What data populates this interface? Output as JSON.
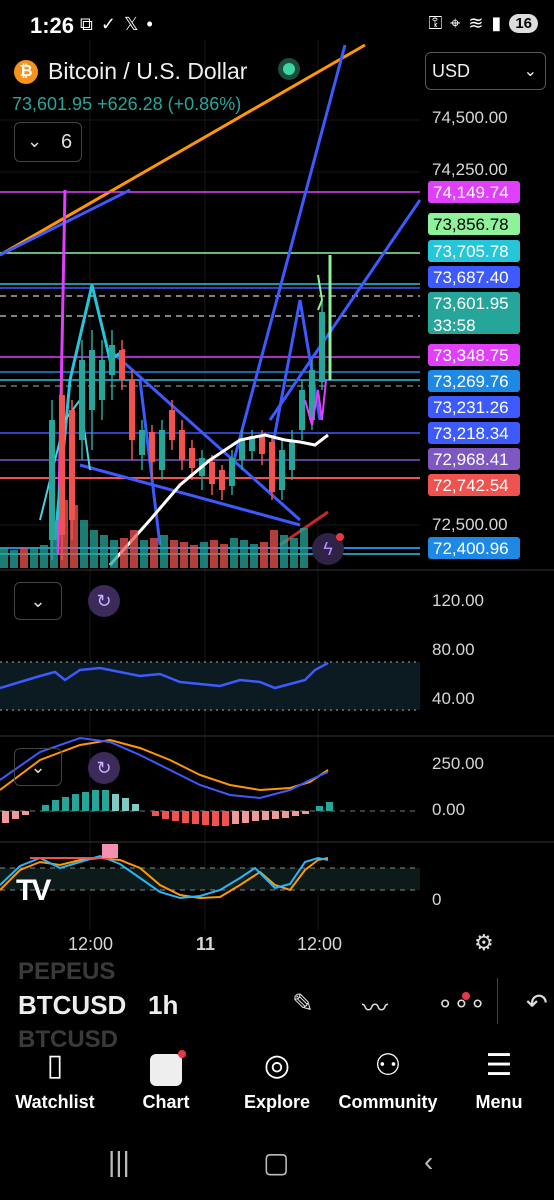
{
  "status_bar": {
    "time": "1:26",
    "left_icons": [
      "screen-record-icon",
      "check-badge-icon",
      "x-logo-icon",
      "dot-icon"
    ],
    "right_icons": [
      "key-icon",
      "location-icon",
      "wifi-icon",
      "signal-icon"
    ],
    "battery": "16"
  },
  "header": {
    "title": "Bitcoin / U.S. Dollar",
    "price": "73,601.95",
    "change": "+626.28 (+0.86%)",
    "currency": "USD",
    "indicator_count": "6"
  },
  "price_axis": {
    "labels": [
      "74,500.00",
      "74,250.00",
      "72,500.00"
    ]
  },
  "price_tags": [
    {
      "value": "74,149.74",
      "color": "#e040fb"
    },
    {
      "value": "73,856.78",
      "color": "#8ef29a"
    },
    {
      "value": "73,705.78",
      "color": "#26c6da"
    },
    {
      "value": "73,687.40",
      "color": "#3d5afe"
    },
    {
      "value": "73,601.95",
      "color": "#26a69a",
      "countdown": "33:58"
    },
    {
      "value": "73,348.75",
      "color": "#e040fb"
    },
    {
      "value": "73,269.76",
      "color": "#1e88e5"
    },
    {
      "value": "73,231.26",
      "color": "#3d5afe"
    },
    {
      "value": "73,218.34",
      "color": "#3d5afe"
    },
    {
      "value": "72,968.41",
      "color": "#7e57c2"
    },
    {
      "value": "72,742.54",
      "color": "#ef5350"
    },
    {
      "value": "72,400.96",
      "color": "#1e88e5"
    }
  ],
  "rsi_axis": [
    "120.00",
    "80.00",
    "40.00"
  ],
  "macd_axis": [
    "250.00",
    "0.00"
  ],
  "stoch_axis": [
    "0"
  ],
  "time_axis": [
    "12:00",
    "11",
    "12:00"
  ],
  "toolbar": {
    "symbol": "BTCUSD",
    "interval": "1h",
    "ghost_symbol_above": "PEPEUS",
    "ghost_symbol_below": "BTCUSD"
  },
  "bottom_nav": [
    {
      "label": "Watchlist",
      "icon": "bookmark-icon"
    },
    {
      "label": "Chart",
      "icon": "chart-icon"
    },
    {
      "label": "Explore",
      "icon": "compass-icon"
    },
    {
      "label": "Community",
      "icon": "people-icon"
    },
    {
      "label": "Menu",
      "icon": "menu-icon"
    }
  ],
  "colors": {
    "up": "#26a69a",
    "down": "#ef5350",
    "background": "#000000"
  }
}
